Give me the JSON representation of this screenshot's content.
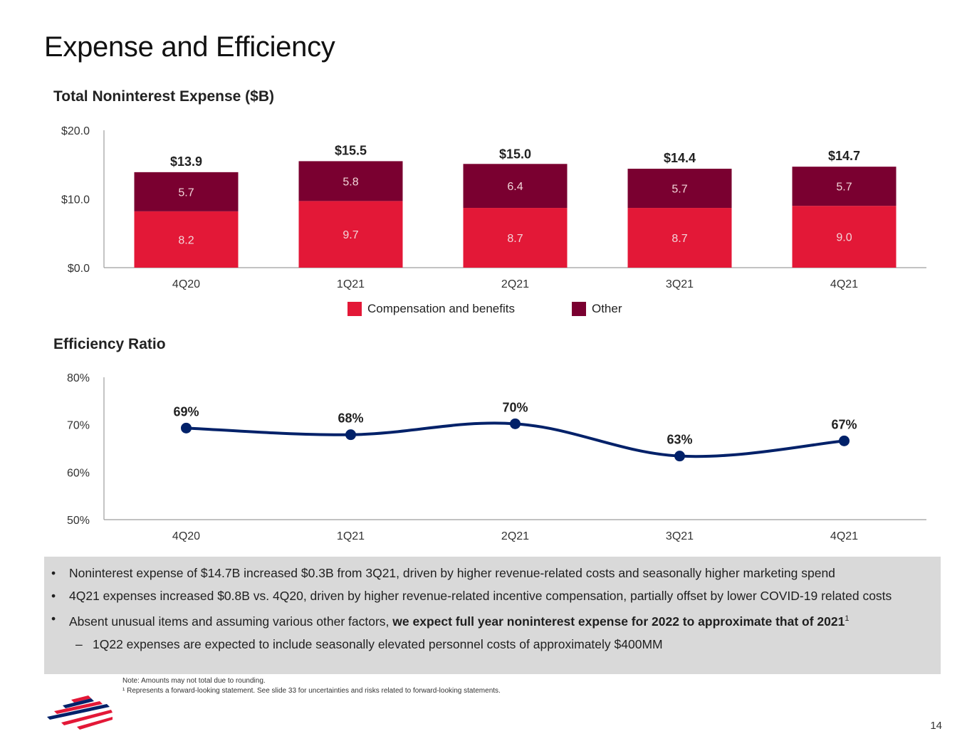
{
  "title": "Expense and Efficiency",
  "bar_section_title": "Total Noninterest Expense ($B)",
  "line_section_title": "Efficiency Ratio",
  "colors": {
    "compensation": "#e31837",
    "other": "#7a0030",
    "line": "#012169",
    "axis": "#9e9e9e"
  },
  "chart_data": [
    {
      "type": "bar",
      "stacked": true,
      "title": "Total Noninterest Expense ($B)",
      "categories": [
        "4Q20",
        "1Q21",
        "2Q21",
        "3Q21",
        "4Q21"
      ],
      "series": [
        {
          "name": "Compensation and benefits",
          "values": [
            8.2,
            9.7,
            8.7,
            8.7,
            9.0
          ],
          "labels": [
            "8.2",
            "9.7",
            "8.7",
            "8.7",
            "9.0"
          ]
        },
        {
          "name": "Other",
          "values": [
            5.7,
            5.8,
            6.4,
            5.7,
            5.7
          ],
          "labels": [
            "5.7",
            "5.8",
            "6.4",
            "5.7",
            "5.7"
          ]
        }
      ],
      "totals": [
        13.9,
        15.5,
        15.0,
        14.4,
        14.7
      ],
      "total_labels": [
        "$13.9",
        "$15.5",
        "$15.0",
        "$14.4",
        "$14.7"
      ],
      "ylim": [
        0,
        20
      ],
      "yticks": [
        0,
        10,
        20
      ],
      "ytick_labels": [
        "$0.0",
        "$10.0",
        "$20.0"
      ],
      "legend_position": "bottom"
    },
    {
      "type": "line",
      "title": "Efficiency Ratio",
      "categories": [
        "4Q20",
        "1Q21",
        "2Q21",
        "3Q21",
        "4Q21"
      ],
      "values": [
        69.3,
        67.9,
        70.2,
        63.4,
        66.6
      ],
      "value_labels": [
        "69%",
        "68%",
        "70%",
        "63%",
        "67%"
      ],
      "ylim": [
        50,
        80
      ],
      "yticks": [
        50,
        60,
        70,
        80
      ],
      "ytick_labels": [
        "50%",
        "60%",
        "70%",
        "80%"
      ]
    }
  ],
  "legend": {
    "compensation": "Compensation and benefits",
    "other": "Other"
  },
  "notes": {
    "b1": "Noninterest expense of $14.7B increased $0.3B from 3Q21, driven by higher revenue-related costs and seasonally higher marketing spend",
    "b2": "4Q21 expenses increased $0.8B vs. 4Q20, driven by higher revenue-related incentive compensation, partially offset by lower COVID-19 related costs",
    "b3_prefix": "Absent unusual items and assuming various other factors, ",
    "b3_bold": "we expect full year noninterest expense for 2022 to approximate that of 2021",
    "b3_sup": "1",
    "sub1": "1Q22 expenses are expected to include seasonally elevated personnel costs of approximately $400MM",
    "bullet": "•",
    "dash": "–"
  },
  "footnotes": {
    "f1": "Note: Amounts may not total due to rounding.",
    "f2": "¹ Represents a forward-looking statement. See slide 33 for uncertainties and risks related to forward-looking statements."
  },
  "page_number": "14"
}
